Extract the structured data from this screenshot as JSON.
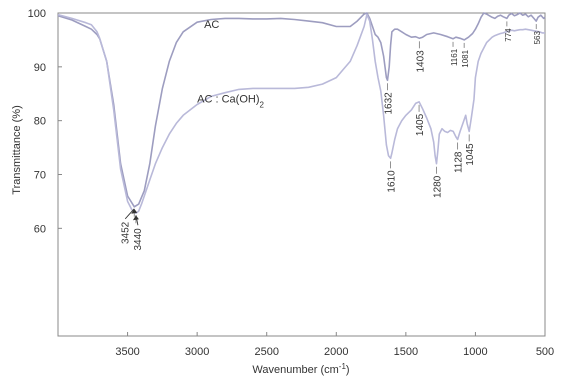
{
  "chart_data": {
    "type": "line",
    "xlabel": "Wavenumber (cm",
    "xlabel_sup": "-1",
    "xlabel_end": ")",
    "ylabel": "Transmittance (%)",
    "xlim": [
      4000,
      500
    ],
    "ylim": [
      40,
      100
    ],
    "x_reversed": true,
    "grid": false,
    "x_ticks": [
      3500,
      3000,
      2500,
      2000,
      1500,
      1000,
      500
    ],
    "y_ticks": [
      60,
      70,
      80,
      90,
      100
    ],
    "series": [
      {
        "name": "AC",
        "color": "#9d9dc0",
        "x": [
          4000,
          3900,
          3800,
          3760,
          3720,
          3700,
          3650,
          3600,
          3550,
          3500,
          3452,
          3420,
          3380,
          3340,
          3300,
          3250,
          3200,
          3150,
          3100,
          3000,
          2900,
          2800,
          2700,
          2600,
          2500,
          2400,
          2300,
          2200,
          2100,
          2000,
          1900,
          1850,
          1800,
          1780,
          1760,
          1740,
          1720,
          1700,
          1680,
          1660,
          1650,
          1640,
          1632,
          1620,
          1610,
          1600,
          1580,
          1560,
          1530,
          1500,
          1460,
          1430,
          1403,
          1380,
          1350,
          1300,
          1250,
          1200,
          1161,
          1140,
          1110,
          1081,
          1050,
          1020,
          1000,
          980,
          960,
          940,
          920,
          900,
          880,
          860,
          840,
          820,
          800,
          774,
          760,
          740,
          720,
          700,
          680,
          660,
          640,
          620,
          600,
          580,
          563,
          550,
          530,
          510,
          500
        ],
        "y": [
          99.5,
          98.7,
          97.5,
          97.0,
          96.0,
          95.2,
          91.0,
          83.0,
          72.0,
          66.0,
          64.0,
          64.5,
          67.0,
          72.0,
          79.0,
          86.0,
          91.0,
          94.5,
          96.5,
          98.3,
          98.8,
          99.0,
          99.0,
          98.9,
          98.9,
          99.0,
          98.8,
          98.5,
          98.2,
          97.5,
          97.5,
          98.5,
          99.8,
          100.0,
          99.0,
          97.5,
          96.0,
          95.5,
          94.5,
          92.0,
          90.0,
          88.0,
          87.5,
          90.0,
          94.0,
          96.5,
          97.0,
          97.0,
          96.5,
          96.0,
          95.5,
          95.6,
          95.3,
          95.5,
          96.0,
          96.3,
          96.0,
          95.6,
          95.2,
          95.5,
          95.3,
          95.0,
          95.5,
          96.2,
          97.0,
          98.0,
          99.2,
          100.0,
          99.8,
          99.5,
          99.2,
          99.0,
          99.4,
          99.6,
          99.3,
          99.0,
          99.6,
          99.9,
          99.5,
          99.7,
          100.0,
          99.6,
          99.8,
          99.3,
          99.6,
          99.0,
          98.5,
          99.2,
          99.6,
          99.0,
          99.2
        ]
      },
      {
        "name": "AC : Ca(OH)",
        "name_sub": "2",
        "color": "#b9b9d9",
        "x": [
          4000,
          3900,
          3800,
          3760,
          3720,
          3700,
          3650,
          3600,
          3550,
          3500,
          3470,
          3440,
          3420,
          3400,
          3380,
          3340,
          3300,
          3250,
          3200,
          3150,
          3100,
          3000,
          2900,
          2800,
          2700,
          2600,
          2500,
          2400,
          2300,
          2200,
          2100,
          2000,
          1950,
          1900,
          1850,
          1800,
          1780,
          1760,
          1740,
          1720,
          1700,
          1680,
          1660,
          1640,
          1625,
          1610,
          1600,
          1580,
          1560,
          1530,
          1500,
          1460,
          1430,
          1405,
          1380,
          1350,
          1320,
          1300,
          1290,
          1280,
          1270,
          1260,
          1240,
          1220,
          1200,
          1180,
          1160,
          1140,
          1128,
          1110,
          1090,
          1070,
          1060,
          1045,
          1030,
          1010,
          1000,
          980,
          960,
          940,
          920,
          900,
          880,
          860,
          840,
          820,
          800,
          780,
          760,
          740,
          720,
          700,
          680,
          660,
          640,
          620,
          600,
          580,
          560,
          540,
          520,
          500
        ],
        "y": [
          99.7,
          99.0,
          98.2,
          97.8,
          96.5,
          95.3,
          91.0,
          82.0,
          71.0,
          65.0,
          63.5,
          62.8,
          63.2,
          64.5,
          66.0,
          69.0,
          72.0,
          75.0,
          77.5,
          79.5,
          81.0,
          83.0,
          84.5,
          85.2,
          85.8,
          86.0,
          86.0,
          86.0,
          86.0,
          86.2,
          86.8,
          88.0,
          89.5,
          91.0,
          94.0,
          97.5,
          99.7,
          98.5,
          95.0,
          91.0,
          88.0,
          85.5,
          81.0,
          75.5,
          73.5,
          73.0,
          74.0,
          76.5,
          78.5,
          80.0,
          81.0,
          82.0,
          83.2,
          83.5,
          82.2,
          80.5,
          78.5,
          76.0,
          73.5,
          72.0,
          74.5,
          77.5,
          78.5,
          78.0,
          77.8,
          78.2,
          78.0,
          77.0,
          76.5,
          78.0,
          79.5,
          81.0,
          79.5,
          78.0,
          80.5,
          84.0,
          88.0,
          91.0,
          92.5,
          93.5,
          94.5,
          95.0,
          95.5,
          95.8,
          96.0,
          96.2,
          96.3,
          96.5,
          96.6,
          96.8,
          96.7,
          96.8,
          96.9,
          96.9,
          97.0,
          96.9,
          96.8,
          96.7,
          96.6,
          96.5,
          96.3,
          96.3
        ]
      }
    ],
    "series_label_positions": [
      {
        "x": 2950,
        "y": 97.2
      },
      {
        "x": 3000,
        "y": 83.4
      }
    ],
    "annotations": [
      {
        "text": "3452",
        "x": 3452,
        "y": 64.0,
        "size": "normal",
        "rotated": true,
        "arrow": true
      },
      {
        "text": "3440",
        "x": 3440,
        "y": 62.8,
        "size": "normal",
        "rotated": true,
        "arrow": true
      },
      {
        "text": "1632",
        "x": 1632,
        "y": 87.5,
        "size": "normal",
        "rotated": true,
        "arrow": false
      },
      {
        "text": "1610",
        "x": 1610,
        "y": 73.0,
        "size": "normal",
        "rotated": true,
        "arrow": false
      },
      {
        "text": "1403",
        "x": 1403,
        "y": 95.3,
        "size": "normal",
        "rotated": true,
        "arrow": false
      },
      {
        "text": "1405",
        "x": 1405,
        "y": 83.5,
        "size": "normal",
        "rotated": true,
        "arrow": false
      },
      {
        "text": "1280",
        "x": 1280,
        "y": 72.0,
        "size": "normal",
        "rotated": true,
        "arrow": false
      },
      {
        "text": "1161",
        "x": 1161,
        "y": 95.2,
        "size": "small",
        "rotated": true,
        "arrow": false
      },
      {
        "text": "1081",
        "x": 1081,
        "y": 95.0,
        "size": "small",
        "rotated": true,
        "arrow": false
      },
      {
        "text": "1128",
        "x": 1128,
        "y": 76.5,
        "size": "normal",
        "rotated": true,
        "arrow": false
      },
      {
        "text": "1045",
        "x": 1045,
        "y": 78.0,
        "size": "normal",
        "rotated": true,
        "arrow": false
      },
      {
        "text": "774",
        "x": 774,
        "y": 99.0,
        "size": "small",
        "rotated": true,
        "arrow": false
      },
      {
        "text": "563",
        "x": 563,
        "y": 98.5,
        "size": "small",
        "rotated": true,
        "arrow": false
      }
    ]
  }
}
